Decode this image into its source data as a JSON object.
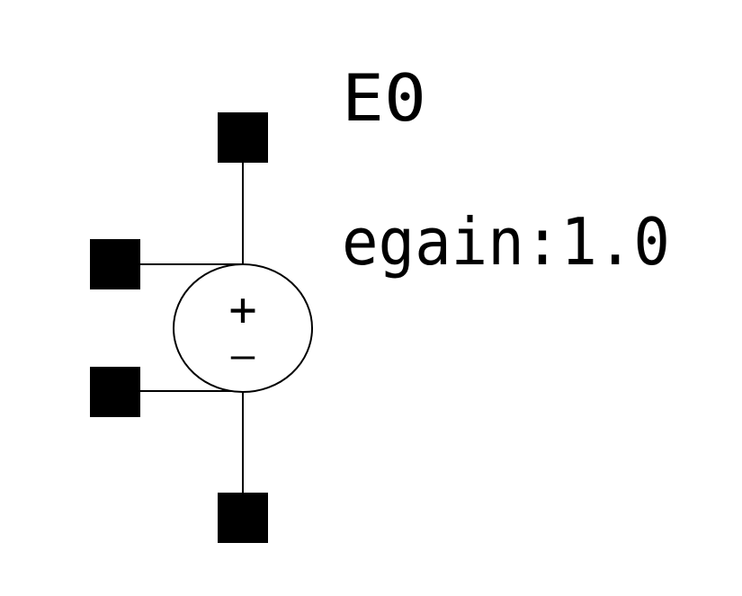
{
  "component": {
    "instance_name": "E0",
    "parameter": "egain:1.0",
    "plus_sign": "+",
    "minus_sign": "—"
  },
  "colors": {
    "ink": "#000000",
    "background": "#ffffff"
  }
}
